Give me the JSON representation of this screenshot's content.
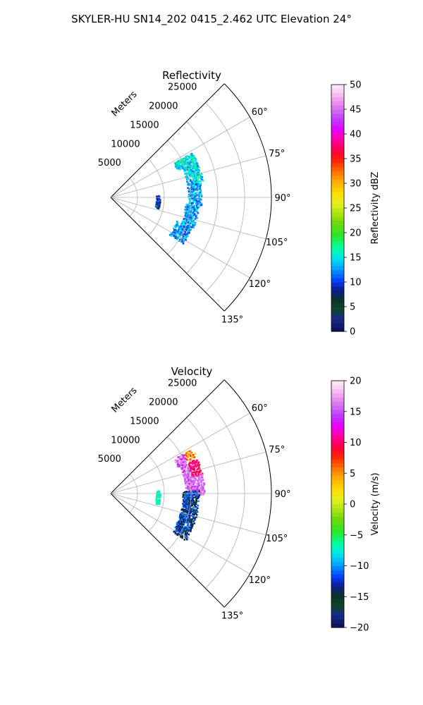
{
  "figure": {
    "suptitle": "SKYLER-HU  SN14_202  0415_2.462 UTC Elevation 24°"
  },
  "chart_data": [
    {
      "type": "polar-sector-scan",
      "title": "Reflectivity",
      "radial_label": "Meters",
      "radial_ticks": [
        5000,
        10000,
        15000,
        20000,
        25000
      ],
      "radial_tick_labels": [
        "5000",
        "10000",
        "15000",
        "20000",
        "25000"
      ],
      "rlim": [
        0,
        30000
      ],
      "angle_range_deg": [
        45,
        135
      ],
      "angle_ticks_deg": [
        60,
        75,
        90,
        105,
        120,
        135
      ],
      "angle_tick_labels": [
        "60°",
        "75°",
        "90°",
        "105°",
        "120°",
        "135°"
      ],
      "angular_gridlines_deg": [
        45,
        60,
        75,
        90,
        105,
        120,
        135
      ],
      "grid": true,
      "colorbar": {
        "label": "Reflectivity dBZ",
        "range": [
          0,
          50
        ],
        "ticks": [
          0,
          5,
          10,
          15,
          20,
          25,
          30,
          35,
          40,
          45,
          50
        ],
        "tick_labels": [
          "0",
          "5",
          "10",
          "15",
          "20",
          "25",
          "30",
          "35",
          "40",
          "45",
          "50"
        ],
        "colormap": "pyart_HomeyerRainbow-like"
      },
      "echo_bands": [
        {
          "angle_start_deg": 61,
          "angle_end_deg": 68,
          "range_start_m": 13500,
          "range_end_m": 17500,
          "value_min": 12,
          "value_max": 19
        },
        {
          "angle_start_deg": 68,
          "angle_end_deg": 80,
          "range_start_m": 14500,
          "range_end_m": 17500,
          "value_min": 11,
          "value_max": 18
        },
        {
          "angle_start_deg": 80,
          "angle_end_deg": 95,
          "range_start_m": 14500,
          "range_end_m": 17000,
          "value_min": 10,
          "value_max": 16
        },
        {
          "angle_start_deg": 95,
          "angle_end_deg": 110,
          "range_start_m": 14000,
          "range_end_m": 16500,
          "value_min": 10,
          "value_max": 16
        },
        {
          "angle_start_deg": 110,
          "angle_end_deg": 122,
          "range_start_m": 13000,
          "range_end_m": 16000,
          "value_min": 9,
          "value_max": 15
        },
        {
          "angle_start_deg": 86,
          "angle_end_deg": 102,
          "range_start_m": 8500,
          "range_end_m": 9200,
          "value_min": 6,
          "value_max": 12
        }
      ]
    },
    {
      "type": "polar-sector-scan",
      "title": "Velocity",
      "radial_label": "Meters",
      "radial_ticks": [
        5000,
        10000,
        15000,
        20000,
        25000
      ],
      "radial_tick_labels": [
        "5000",
        "10000",
        "15000",
        "20000",
        "25000"
      ],
      "rlim": [
        0,
        30000
      ],
      "angle_range_deg": [
        45,
        135
      ],
      "angle_ticks_deg": [
        60,
        75,
        90,
        105,
        120,
        135
      ],
      "angle_tick_labels": [
        "60°",
        "75°",
        "90°",
        "105°",
        "120°",
        "135°"
      ],
      "angular_gridlines_deg": [
        45,
        60,
        75,
        90,
        105,
        120,
        135
      ],
      "grid": true,
      "colorbar": {
        "label": "Velocity (m/s)",
        "range": [
          -20,
          20
        ],
        "ticks": [
          -20,
          -15,
          -10,
          -5,
          0,
          5,
          10,
          15,
          20
        ],
        "tick_labels": [
          "−20",
          "−15",
          "−10",
          "−5",
          "0",
          "5",
          "10",
          "15",
          "20"
        ],
        "colormap": "pyart_HomeyerRainbow-like"
      },
      "echo_bands": [
        {
          "angle_start_deg": 61,
          "angle_end_deg": 66,
          "range_start_m": 15500,
          "range_end_m": 17500,
          "value_min": 2,
          "value_max": 11
        },
        {
          "angle_start_deg": 61,
          "angle_end_deg": 68,
          "range_start_m": 13500,
          "range_end_m": 15500,
          "value_min": 13,
          "value_max": 18
        },
        {
          "angle_start_deg": 68,
          "angle_end_deg": 78,
          "range_start_m": 15500,
          "range_end_m": 17500,
          "value_min": 8,
          "value_max": 12
        },
        {
          "angle_start_deg": 68,
          "angle_end_deg": 88,
          "range_start_m": 14000,
          "range_end_m": 15500,
          "value_min": 13,
          "value_max": 18
        },
        {
          "angle_start_deg": 78,
          "angle_end_deg": 90,
          "range_start_m": 15500,
          "range_end_m": 17500,
          "value_min": 14,
          "value_max": 17
        },
        {
          "angle_start_deg": 88,
          "angle_end_deg": 122,
          "range_start_m": 13500,
          "range_end_m": 16500,
          "value_min": -16,
          "value_max": -10
        },
        {
          "angle_start_deg": 86,
          "angle_end_deg": 102,
          "range_start_m": 8500,
          "range_end_m": 9200,
          "value_min": -8,
          "value_max": -6
        }
      ]
    }
  ]
}
